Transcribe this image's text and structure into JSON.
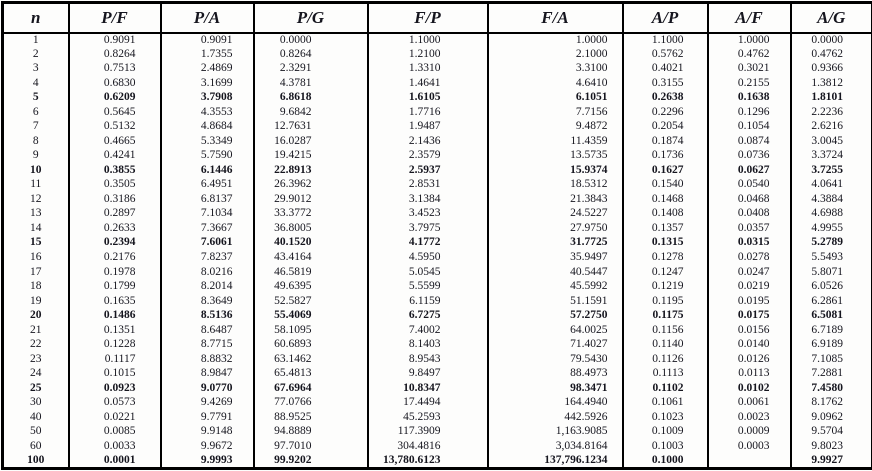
{
  "table": {
    "columns": [
      "n",
      "P/F",
      "P/A",
      "P/G",
      "F/P",
      "F/A",
      "A/P",
      "A/F",
      "A/G"
    ],
    "bold_rows": [
      "5",
      "10",
      "15",
      "20",
      "25",
      "100"
    ],
    "rows": [
      {
        "n": "1",
        "values": [
          "0.9091",
          "0.9091",
          "0.0000",
          "1.1000",
          "1.0000",
          "1.1000",
          "1.0000",
          "0.0000"
        ]
      },
      {
        "n": "2",
        "values": [
          "0.8264",
          "1.7355",
          "0.8264",
          "1.2100",
          "2.1000",
          "0.5762",
          "0.4762",
          "0.4762"
        ]
      },
      {
        "n": "3",
        "values": [
          "0.7513",
          "2.4869",
          "2.3291",
          "1.3310",
          "3.3100",
          "0.4021",
          "0.3021",
          "0.9366"
        ]
      },
      {
        "n": "4",
        "values": [
          "0.6830",
          "3.1699",
          "4.3781",
          "1.4641",
          "4.6410",
          "0.3155",
          "0.2155",
          "1.3812"
        ]
      },
      {
        "n": "5",
        "values": [
          "0.6209",
          "3.7908",
          "6.8618",
          "1.6105",
          "6.1051",
          "0.2638",
          "0.1638",
          "1.8101"
        ]
      },
      {
        "n": "6",
        "values": [
          "0.5645",
          "4.3553",
          "9.6842",
          "1.7716",
          "7.7156",
          "0.2296",
          "0.1296",
          "2.2236"
        ]
      },
      {
        "n": "7",
        "values": [
          "0.5132",
          "4.8684",
          "12.7631",
          "1.9487",
          "9.4872",
          "0.2054",
          "0.1054",
          "2.6216"
        ]
      },
      {
        "n": "8",
        "values": [
          "0.4665",
          "5.3349",
          "16.0287",
          "2.1436",
          "11.4359",
          "0.1874",
          "0.0874",
          "3.0045"
        ]
      },
      {
        "n": "9",
        "values": [
          "0.4241",
          "5.7590",
          "19.4215",
          "2.3579",
          "13.5735",
          "0.1736",
          "0.0736",
          "3.3724"
        ]
      },
      {
        "n": "10",
        "values": [
          "0.3855",
          "6.1446",
          "22.8913",
          "2.5937",
          "15.9374",
          "0.1627",
          "0.0627",
          "3.7255"
        ]
      },
      {
        "n": "11",
        "values": [
          "0.3505",
          "6.4951",
          "26.3962",
          "2.8531",
          "18.5312",
          "0.1540",
          "0.0540",
          "4.0641"
        ]
      },
      {
        "n": "12",
        "values": [
          "0.3186",
          "6.8137",
          "29.9012",
          "3.1384",
          "21.3843",
          "0.1468",
          "0.0468",
          "4.3884"
        ]
      },
      {
        "n": "13",
        "values": [
          "0.2897",
          "7.1034",
          "33.3772",
          "3.4523",
          "24.5227",
          "0.1408",
          "0.0408",
          "4.6988"
        ]
      },
      {
        "n": "14",
        "values": [
          "0.2633",
          "7.3667",
          "36.8005",
          "3.7975",
          "27.9750",
          "0.1357",
          "0.0357",
          "4.9955"
        ]
      },
      {
        "n": "15",
        "values": [
          "0.2394",
          "7.6061",
          "40.1520",
          "4.1772",
          "31.7725",
          "0.1315",
          "0.0315",
          "5.2789"
        ]
      },
      {
        "n": "16",
        "values": [
          "0.2176",
          "7.8237",
          "43.4164",
          "4.5950",
          "35.9497",
          "0.1278",
          "0.0278",
          "5.5493"
        ]
      },
      {
        "n": "17",
        "values": [
          "0.1978",
          "8.0216",
          "46.5819",
          "5.0545",
          "40.5447",
          "0.1247",
          "0.0247",
          "5.8071"
        ]
      },
      {
        "n": "18",
        "values": [
          "0.1799",
          "8.2014",
          "49.6395",
          "5.5599",
          "45.5992",
          "0.1219",
          "0.0219",
          "6.0526"
        ]
      },
      {
        "n": "19",
        "values": [
          "0.1635",
          "8.3649",
          "52.5827",
          "6.1159",
          "51.1591",
          "0.1195",
          "0.0195",
          "6.2861"
        ]
      },
      {
        "n": "20",
        "values": [
          "0.1486",
          "8.5136",
          "55.4069",
          "6.7275",
          "57.2750",
          "0.1175",
          "0.0175",
          "6.5081"
        ]
      },
      {
        "n": "21",
        "values": [
          "0.1351",
          "8.6487",
          "58.1095",
          "7.4002",
          "64.0025",
          "0.1156",
          "0.0156",
          "6.7189"
        ]
      },
      {
        "n": "22",
        "values": [
          "0.1228",
          "8.7715",
          "60.6893",
          "8.1403",
          "71.4027",
          "0.1140",
          "0.0140",
          "6.9189"
        ]
      },
      {
        "n": "23",
        "values": [
          "0.1117",
          "8.8832",
          "63.1462",
          "8.9543",
          "79.5430",
          "0.1126",
          "0.0126",
          "7.1085"
        ]
      },
      {
        "n": "24",
        "values": [
          "0.1015",
          "8.9847",
          "65.4813",
          "9.8497",
          "88.4973",
          "0.1113",
          "0.0113",
          "7.2881"
        ]
      },
      {
        "n": "25",
        "values": [
          "0.0923",
          "9.0770",
          "67.6964",
          "10.8347",
          "98.3471",
          "0.1102",
          "0.0102",
          "7.4580"
        ]
      },
      {
        "n": "30",
        "values": [
          "0.0573",
          "9.4269",
          "77.0766",
          "17.4494",
          "164.4940",
          "0.1061",
          "0.0061",
          "8.1762"
        ]
      },
      {
        "n": "40",
        "values": [
          "0.0221",
          "9.7791",
          "88.9525",
          "45.2593",
          "442.5926",
          "0.1023",
          "0.0023",
          "9.0962"
        ]
      },
      {
        "n": "50",
        "values": [
          "0.0085",
          "9.9148",
          "94.8889",
          "117.3909",
          "1,163.9085",
          "0.1009",
          "0.0009",
          "9.5704"
        ]
      },
      {
        "n": "60",
        "values": [
          "0.0033",
          "9.9672",
          "97.7010",
          "304.4816",
          "3,034.8164",
          "0.1003",
          "0.0003",
          "9.8023"
        ]
      },
      {
        "n": "100",
        "values": [
          "0.0001",
          "9.9993",
          "99.9202",
          "13,780.6123",
          "137,796.1234",
          "0.1000",
          "",
          "9.9927"
        ]
      }
    ]
  }
}
